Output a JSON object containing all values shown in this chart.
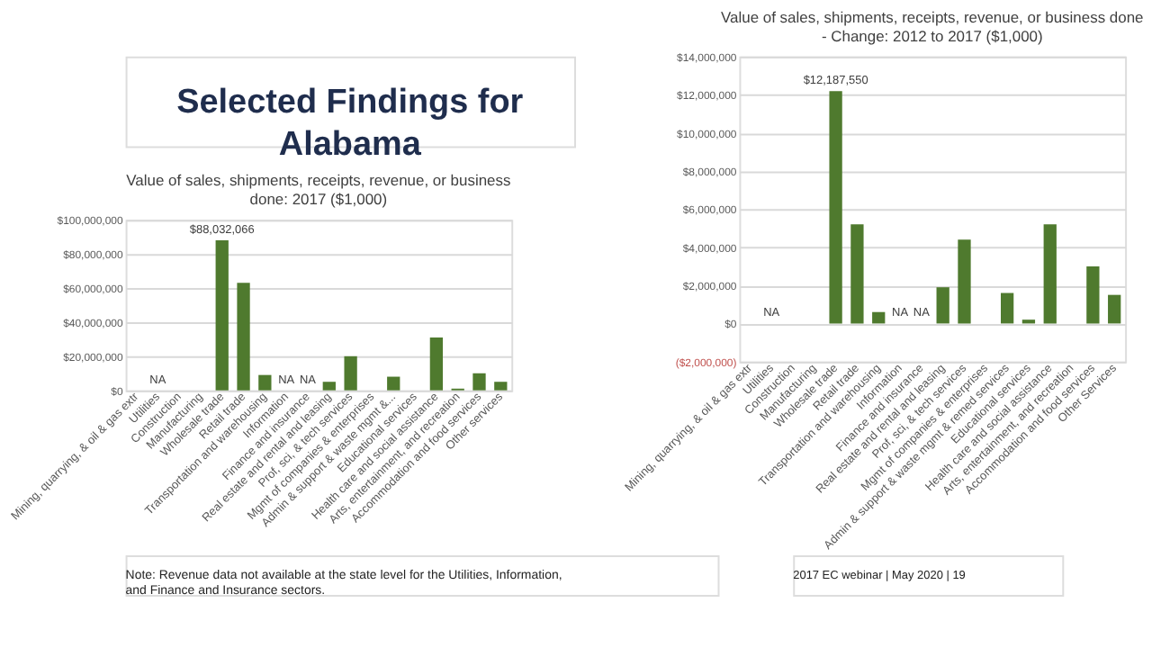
{
  "chart_data": [
    {
      "type": "bar",
      "title": "Value of sales, shipments, receipts, revenue, or business done: 2017 ($1,000)",
      "annotations": [
        "Selected Findings for Alabama",
        "Note: Revenue data not available at the state level for the Utilities, Information, and Finance and Insurance sectors."
      ],
      "categories": [
        "Mining, quarrying, & oil & gas extr",
        "Utilities",
        "Construction",
        "Manufacturing",
        "Wholesale trade",
        "Retail trade",
        "Transportation and warehousing",
        "Information",
        "Finance and insurance",
        "Real estate and rental and leasing",
        "Prof, sci, & tech services",
        "Mgmt of companies & enterprises",
        "Admin & support & waste mgmt &...",
        "Educational services",
        "Health care and social assistance",
        "Arts, entertainment, and recreation",
        "Accommodation and food services",
        "Other services"
      ],
      "values": [
        0,
        null,
        0,
        0,
        88032066,
        63000000,
        9000000,
        null,
        null,
        5000000,
        20000000,
        0,
        8000000,
        0,
        31000000,
        1000000,
        10000000,
        5000000
      ],
      "value_labels": [
        null,
        "NA",
        null,
        null,
        "$88,032,066",
        null,
        null,
        "NA",
        "NA",
        null,
        null,
        null,
        null,
        null,
        null,
        null,
        null,
        null
      ],
      "color": "#4f7a2e",
      "ylim": [
        0,
        100000000
      ],
      "yticks": [
        {
          "value": 0,
          "label": "$0"
        },
        {
          "value": 20000000,
          "label": "$20,000,000"
        },
        {
          "value": 40000000,
          "label": "$40,000,000"
        },
        {
          "value": 60000000,
          "label": "$60,000,000"
        },
        {
          "value": 80000000,
          "label": "$80,000,000"
        },
        {
          "value": 100000000,
          "label": "$100,000,000"
        }
      ],
      "grid": "y"
    },
    {
      "type": "bar",
      "title": "Value of sales, shipments, receipts, revenue, or business done - Change: 2012 to 2017 ($1,000)",
      "annotations": [
        "2017 EC webinar | May 2020 | 19"
      ],
      "categories": [
        "Mining, quarrying, & oil & gas extr",
        "Utilities",
        "Construction",
        "Manufacturing",
        "Wholesale trade",
        "Retail trade",
        "Transportation and warehousing",
        "Information",
        "Finance and insurance",
        "Real estate and rental and leasing",
        "Prof, sci, & tech services",
        "Mgmt of companies & enterprises",
        "Admin & support & waste mgmt & remed services",
        "Educational services",
        "Health care and social assistance",
        "Arts, entertainment, and recreation",
        "Accommodation and food services",
        "Other Services"
      ],
      "values": [
        0,
        null,
        0,
        0,
        12187550,
        5200000,
        600000,
        null,
        null,
        1900000,
        4400000,
        0,
        1600000,
        200000,
        5200000,
        0,
        3000000,
        1500000
      ],
      "value_labels": [
        null,
        "NA",
        null,
        null,
        "$12,187,550",
        null,
        null,
        "NA",
        "NA",
        null,
        null,
        null,
        null,
        null,
        null,
        null,
        null,
        null
      ],
      "color": "#4f7a2e",
      "ylim": [
        -2000000,
        14000000
      ],
      "yticks": [
        {
          "value": -2000000,
          "label": "($2,000,000)"
        },
        {
          "value": 0,
          "label": "$0"
        },
        {
          "value": 2000000,
          "label": "$2,000,000"
        },
        {
          "value": 4000000,
          "label": "$4,000,000"
        },
        {
          "value": 6000000,
          "label": "$6,000,000"
        },
        {
          "value": 8000000,
          "label": "$8,000,000"
        },
        {
          "value": 10000000,
          "label": "$10,000,000"
        },
        {
          "value": 12000000,
          "label": "$12,000,000"
        },
        {
          "value": 14000000,
          "label": "$14,000,000"
        }
      ],
      "grid": "y"
    }
  ]
}
